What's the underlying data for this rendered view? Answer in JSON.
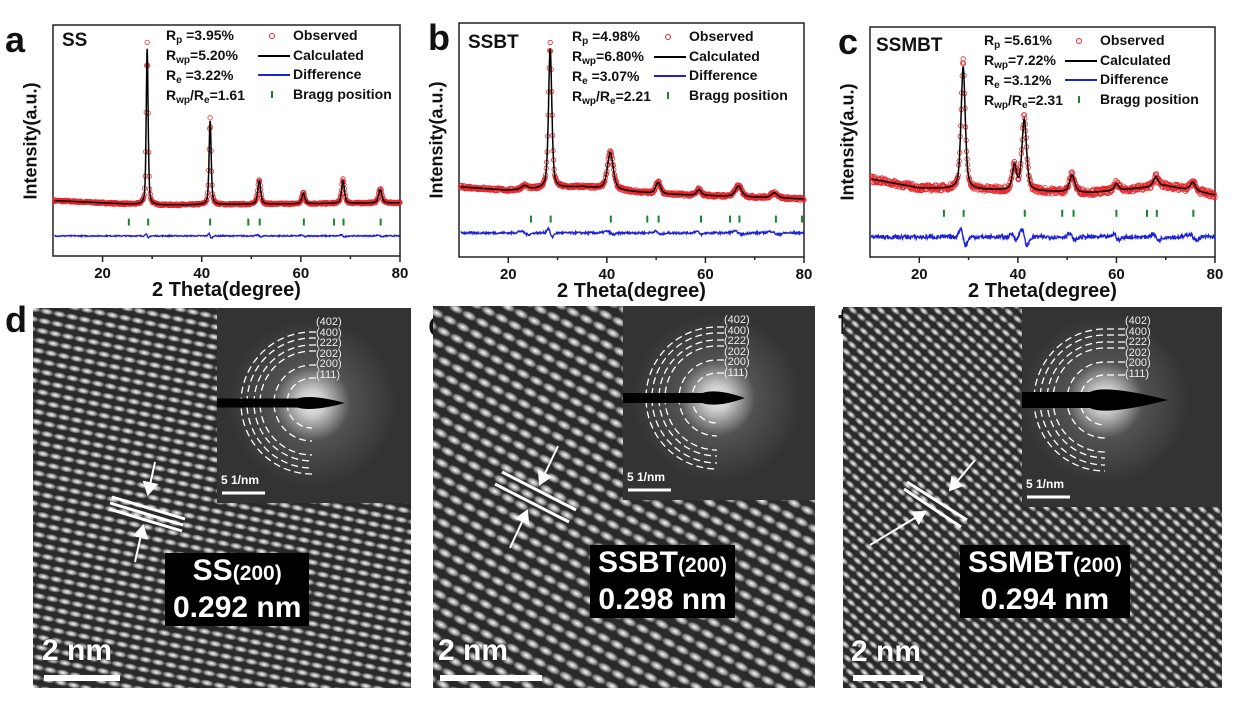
{
  "panel_letters": [
    "a",
    "b",
    "c",
    "d",
    "e",
    "f"
  ],
  "colors": {
    "observed": "#e8262b",
    "calculated": "#000000",
    "difference": "#1d22d6",
    "bragg": "#17862a"
  },
  "chart_data": [
    {
      "type": "line",
      "panel": "a",
      "sample": "SS",
      "xlabel": "2 Theta(degree)",
      "ylabel": "Intensity(a.u.)",
      "xlim": [
        10,
        80
      ],
      "xticks": [
        "20",
        "40",
        "60",
        "80"
      ],
      "grid": false,
      "legend_placement": "top-right",
      "stats": [
        [
          {
            "t": "R"
          },
          {
            "s": "p"
          },
          {
            "t": " =3.95%"
          }
        ],
        [
          {
            "t": "R"
          },
          {
            "s": "wp"
          },
          {
            "t": "=5.20%"
          }
        ],
        [
          {
            "t": "R"
          },
          {
            "s": "e"
          },
          {
            "t": " =3.22%"
          }
        ],
        [
          {
            "t": "R"
          },
          {
            "s": "wp"
          },
          {
            "t": "/R"
          },
          {
            "s": "e"
          },
          {
            "t": "=1.61"
          }
        ]
      ],
      "legend": [
        "Observed",
        "Calculated",
        "Difference",
        "Bragg position"
      ],
      "ylim": [
        0,
        100
      ],
      "background": [
        [
          10,
          24
        ],
        [
          30,
          22
        ],
        [
          80,
          23
        ]
      ],
      "peaks": [
        [
          29.0,
          92.6,
          0.45
        ],
        [
          41.7,
          60,
          0.5
        ],
        [
          51.6,
          33,
          0.7
        ],
        [
          60.5,
          27.5,
          0.7
        ],
        [
          68.5,
          33,
          0.7
        ],
        [
          76.0,
          29,
          0.8
        ]
      ],
      "bragg_positions": [
        25.3,
        29.2,
        41.7,
        49.4,
        51.7,
        60.6,
        66.7,
        68.6,
        76.1
      ],
      "bragg_level": 14.7,
      "difference_baseline": 8.7
    },
    {
      "type": "line",
      "panel": "b",
      "sample": "SSBT",
      "xlabel": "2 Theta(degree)",
      "ylabel": "Intensity(a.u.)",
      "xlim": [
        10,
        80
      ],
      "xticks": [
        "20",
        "40",
        "60",
        "80"
      ],
      "grid": false,
      "legend_placement": "top-right",
      "stats": [
        [
          {
            "t": "R"
          },
          {
            "s": "p"
          },
          {
            "t": " =4.98%"
          }
        ],
        [
          {
            "t": "R"
          },
          {
            "s": "wp"
          },
          {
            "t": "=6.80%"
          }
        ],
        [
          {
            "t": "R"
          },
          {
            "s": "e"
          },
          {
            "t": " =3.07%"
          }
        ],
        [
          {
            "t": "R"
          },
          {
            "s": "wp"
          },
          {
            "t": "/R"
          },
          {
            "s": "e"
          },
          {
            "t": "=2.21"
          }
        ]
      ],
      "legend": [
        "Observed",
        "Calculated",
        "Difference",
        "Bragg position"
      ],
      "ylim": [
        0,
        100
      ],
      "background": [
        [
          10,
          30
        ],
        [
          20,
          28.5
        ],
        [
          35,
          30
        ],
        [
          50,
          27
        ],
        [
          80,
          24.8
        ]
      ],
      "peaks": [
        [
          23.3,
          30.5,
          1.5
        ],
        [
          28.5,
          91.5,
          0.8
        ],
        [
          40.7,
          45.3,
          1.4
        ],
        [
          50.4,
          32,
          1.2
        ],
        [
          58.7,
          29,
          1.0
        ],
        [
          66.7,
          30.5,
          1.5
        ],
        [
          74.0,
          27.5,
          1.5
        ]
      ],
      "bragg_positions": [
        24.6,
        28.6,
        40.8,
        48.2,
        50.5,
        59.1,
        65.0,
        66.9,
        74.3,
        79.6
      ],
      "bragg_level": 16.2,
      "difference_baseline": 10.3
    },
    {
      "type": "line",
      "panel": "c",
      "sample": "SSMBT",
      "xlabel": "2 Theta(degree)",
      "ylabel": "Intensity(a.u.)",
      "xlim": [
        10,
        80
      ],
      "xticks": [
        "20",
        "40",
        "60",
        "80"
      ],
      "grid": false,
      "legend_placement": "top-right",
      "stats": [
        [
          {
            "t": "R"
          },
          {
            "s": "p"
          },
          {
            "t": " =5.61%"
          }
        ],
        [
          {
            "t": "R"
          },
          {
            "s": "wp"
          },
          {
            "t": "=7.22%"
          }
        ],
        [
          {
            "t": "R"
          },
          {
            "s": "e"
          },
          {
            "t": " =3.12%"
          }
        ],
        [
          {
            "t": "R"
          },
          {
            "s": "wp"
          },
          {
            "t": "/R"
          },
          {
            "s": "e"
          },
          {
            "t": "=2.31"
          }
        ]
      ],
      "legend": [
        "Observed",
        "Calculated",
        "Difference",
        "Bragg position"
      ],
      "ylim": [
        0,
        100
      ],
      "background": [
        [
          10,
          34
        ],
        [
          20,
          30
        ],
        [
          38,
          29
        ],
        [
          55,
          28
        ],
        [
          70,
          31
        ],
        [
          80,
          27
        ]
      ],
      "peaks": [
        [
          28.9,
          85,
          1.0
        ],
        [
          39.3,
          40,
          1.0
        ],
        [
          41.3,
          61,
          1.1
        ],
        [
          51.0,
          36,
          1.2
        ],
        [
          60.0,
          32,
          1.0
        ],
        [
          68.0,
          35,
          1.2
        ],
        [
          75.5,
          32.6,
          1.3
        ]
      ],
      "bragg_positions": [
        25.0,
        29.0,
        41.4,
        49.0,
        51.3,
        60.0,
        66.2,
        68.2,
        75.6
      ],
      "bragg_level": 19,
      "difference_baseline": 8.7
    }
  ],
  "tem_panels": [
    {
      "panel": "d",
      "phase": "SS",
      "hkl": "(200)",
      "d_spacing": "0.292 nm",
      "scale_bar": "2 nm",
      "saed_scale": "5 1/nm",
      "rings": [
        "(402)",
        "(400)",
        "(222)",
        "(202)",
        "(200)",
        "(111)"
      ]
    },
    {
      "panel": "e",
      "phase": "SSBT",
      "hkl": "(200)",
      "d_spacing": "0.298 nm",
      "scale_bar": "2 nm",
      "saed_scale": "5 1/nm",
      "rings": [
        "(402)",
        "(400)",
        "(222)",
        "(202)",
        "(200)",
        "(111)"
      ]
    },
    {
      "panel": "f",
      "phase": "SSMBT",
      "hkl": "(200)",
      "d_spacing": "0.294 nm",
      "scale_bar": "2 nm",
      "saed_scale": "5 1/nm",
      "rings": [
        "(402)",
        "(400)",
        "(222)",
        "(202)",
        "(200)",
        "(111)"
      ]
    }
  ]
}
